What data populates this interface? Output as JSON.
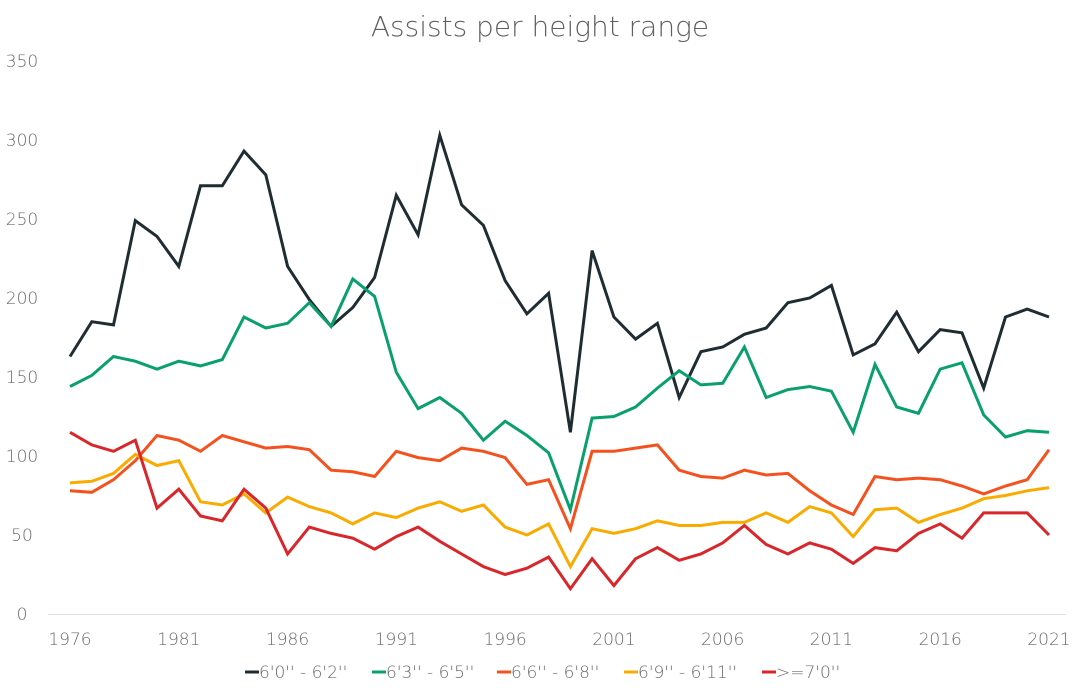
{
  "chart_data": {
    "type": "line",
    "title": "Assists per height range",
    "xlabel": "",
    "ylabel": "",
    "ylim": [
      0,
      350
    ],
    "yticks": [
      0,
      50,
      100,
      150,
      200,
      250,
      300,
      350
    ],
    "xlim": [
      1976,
      2021
    ],
    "xticks": [
      1976,
      1981,
      1986,
      1991,
      1996,
      2001,
      2006,
      2011,
      2016,
      2021
    ],
    "grid": false,
    "legend_position": "bottom",
    "x": [
      1976,
      1977,
      1978,
      1979,
      1980,
      1981,
      1982,
      1983,
      1984,
      1985,
      1986,
      1987,
      1988,
      1989,
      1990,
      1991,
      1992,
      1993,
      1994,
      1995,
      1996,
      1997,
      1998,
      1999,
      2000,
      2001,
      2002,
      2003,
      2004,
      2005,
      2006,
      2007,
      2008,
      2009,
      2010,
      2011,
      2012,
      2013,
      2014,
      2015,
      2016,
      2017,
      2018,
      2019,
      2020,
      2021
    ],
    "series": [
      {
        "name": "6'0'' - 6'2''",
        "color": "#1f2d33",
        "values": [
          163,
          185,
          183,
          249,
          239,
          220,
          271,
          271,
          293,
          278,
          220,
          199,
          182,
          194,
          213,
          265,
          240,
          303,
          259,
          246,
          211,
          190,
          203,
          115,
          230,
          188,
          174,
          184,
          137,
          166,
          169,
          177,
          181,
          197,
          200,
          208,
          164,
          171,
          191,
          166,
          180,
          178,
          143,
          188,
          193,
          188
        ]
      },
      {
        "name": "6'3'' - 6'5''",
        "color": "#0aa06e",
        "values": [
          144,
          151,
          163,
          160,
          155,
          160,
          157,
          161,
          188,
          181,
          184,
          197,
          182,
          212,
          201,
          153,
          130,
          137,
          127,
          110,
          122,
          113,
          102,
          66,
          124,
          125,
          131,
          143,
          154,
          145,
          146,
          169,
          137,
          142,
          144,
          141,
          115,
          158,
          131,
          127,
          155,
          159,
          126,
          112,
          116,
          115
        ]
      },
      {
        "name": "6'6'' - 6'8''",
        "color": "#f4511e",
        "values": [
          78,
          77,
          85,
          97,
          113,
          110,
          103,
          113,
          109,
          105,
          106,
          104,
          91,
          90,
          87,
          103,
          99,
          97,
          105,
          103,
          99,
          82,
          85,
          54,
          103,
          103,
          105,
          107,
          91,
          87,
          86,
          91,
          88,
          89,
          78,
          69,
          63,
          87,
          85,
          86,
          85,
          81,
          76,
          81,
          85,
          104
        ]
      },
      {
        "name": "6'9'' - 6'11''",
        "color": "#f9ab00",
        "values": [
          83,
          84,
          89,
          101,
          94,
          97,
          71,
          69,
          76,
          64,
          74,
          68,
          64,
          57,
          64,
          61,
          67,
          71,
          65,
          69,
          55,
          50,
          57,
          30,
          54,
          51,
          54,
          59,
          56,
          56,
          58,
          58,
          64,
          58,
          68,
          64,
          49,
          66,
          67,
          58,
          63,
          67,
          73,
          75,
          78,
          80
        ]
      },
      {
        "name": ">=7'0''",
        "color": "#d9262a",
        "values": [
          115,
          107,
          103,
          110,
          67,
          79,
          62,
          59,
          79,
          67,
          38,
          55,
          51,
          48,
          41,
          49,
          55,
          46,
          38,
          30,
          25,
          29,
          36,
          16,
          35,
          18,
          35,
          42,
          34,
          38,
          45,
          56,
          44,
          38,
          45,
          41,
          32,
          42,
          40,
          51,
          57,
          48,
          64,
          64,
          64,
          50
        ]
      }
    ]
  }
}
